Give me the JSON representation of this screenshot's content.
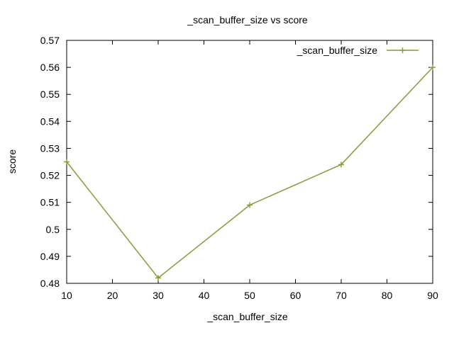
{
  "chart_data": {
    "type": "line",
    "title": "_scan_buffer_size vs score",
    "xlabel": "_scan_buffer_size",
    "ylabel": "score",
    "xlim": [
      10,
      90
    ],
    "ylim": [
      0.48,
      0.57
    ],
    "xticks": [
      10,
      20,
      30,
      40,
      50,
      60,
      70,
      80,
      90
    ],
    "yticks": [
      0.48,
      0.49,
      0.5,
      0.51,
      0.52,
      0.53,
      0.54,
      0.55,
      0.56,
      0.57
    ],
    "ytick_labels": [
      "0.48",
      "0.49",
      "0.5",
      "0.51",
      "0.52",
      "0.53",
      "0.54",
      "0.55",
      "0.56",
      "0.57"
    ],
    "grid": false,
    "legend_position": "top-right",
    "series": [
      {
        "name": "_scan_buffer_size",
        "color": "#8a9a3a",
        "marker": "plus",
        "x": [
          10,
          30,
          50,
          70,
          90
        ],
        "y": [
          0.525,
          0.482,
          0.509,
          0.524,
          0.56
        ]
      }
    ]
  }
}
